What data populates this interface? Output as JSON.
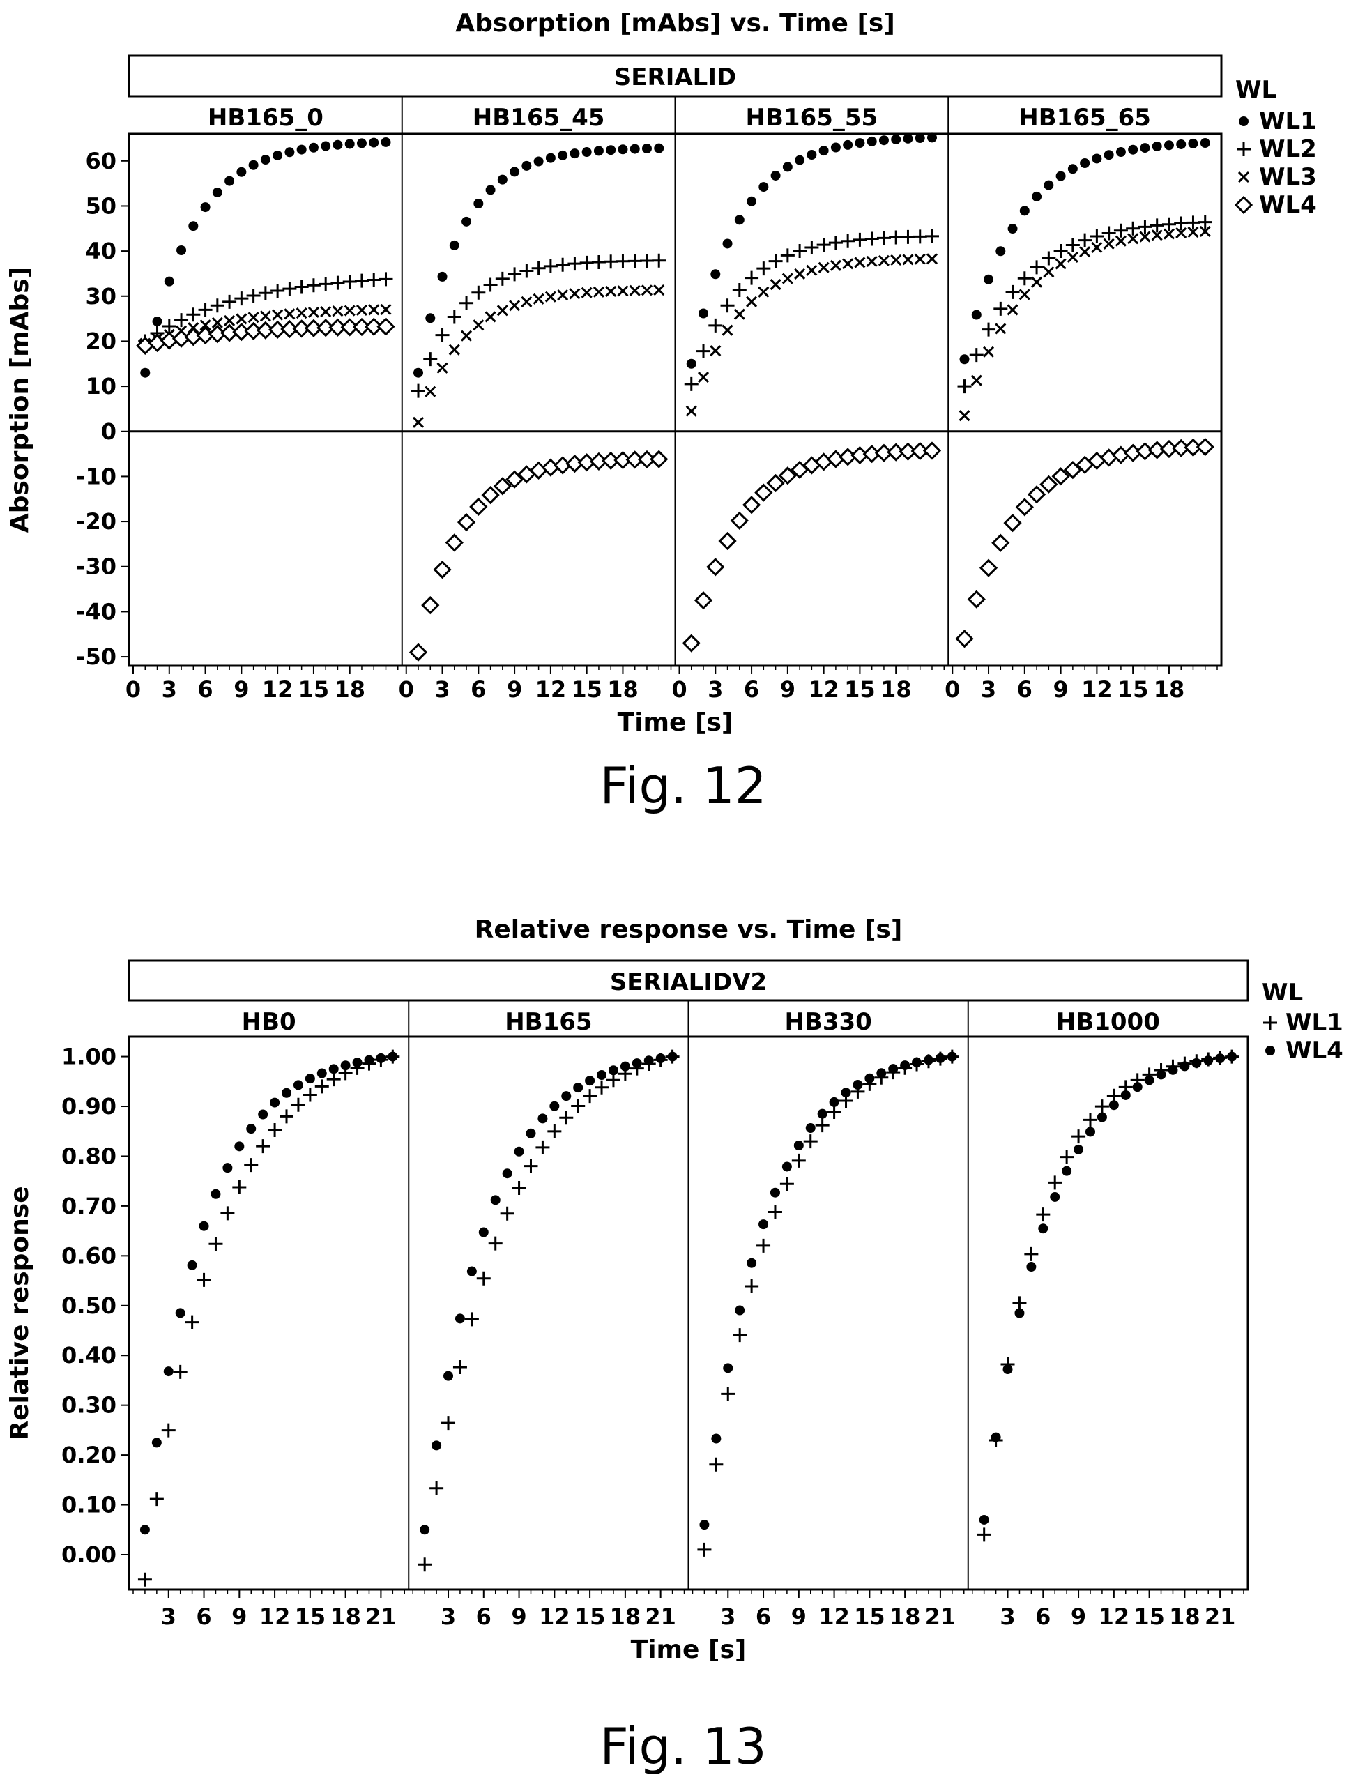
{
  "colors": {
    "ink": "#000000",
    "background": "#ffffff"
  },
  "chart_data": [
    {
      "type": "scatter",
      "title": "Absorption [mAbs] vs. Time [s]",
      "strip_title": "SERIALID",
      "xlabel": "Time [s]",
      "ylabel": "Absorption [mAbs]",
      "xlim": [
        0,
        22
      ],
      "ylim": [
        -52,
        66
      ],
      "x_ticks": [
        "0",
        "3",
        "6",
        "9",
        "12",
        "15",
        "18"
      ],
      "y_ticks": [
        "60",
        "50",
        "40",
        "30",
        "20",
        "10",
        "0",
        "-10",
        "-20",
        "-30",
        "-40",
        "-50"
      ],
      "zero_line": true,
      "grid": false,
      "legend_title": "WL",
      "legend_position": "right",
      "legend": [
        {
          "name": "WL1",
          "marker": "filled-circle"
        },
        {
          "name": "WL2",
          "marker": "plus"
        },
        {
          "name": "WL3",
          "marker": "cross"
        },
        {
          "name": "WL4",
          "marker": "open-diamond"
        }
      ],
      "panels": [
        {
          "label": "HB165_0",
          "series": [
            {
              "name": "WL1",
              "model": {
                "y0": 13.0,
                "yinf": 64.5,
                "tau": 4.0
              }
            },
            {
              "name": "WL2",
              "model": {
                "y0": 20.0,
                "yinf": 35.0,
                "tau": 8.0
              }
            },
            {
              "name": "WL3",
              "model": {
                "y0": 19.5,
                "yinf": 27.5,
                "tau": 7.0
              }
            },
            {
              "name": "WL4",
              "model": {
                "y0": 19.0,
                "yinf": 23.5,
                "tau": 7.0
              }
            }
          ]
        },
        {
          "label": "HB165_45",
          "series": [
            {
              "name": "WL1",
              "model": {
                "y0": 13.0,
                "yinf": 63.0,
                "tau": 3.6
              }
            },
            {
              "name": "WL2",
              "model": {
                "y0": 9.0,
                "yinf": 38.0,
                "tau": 3.6
              }
            },
            {
              "name": "WL3",
              "model": {
                "y0": 2.0,
                "yinf": 31.5,
                "tau": 3.8
              }
            },
            {
              "name": "WL4",
              "model": {
                "y0": -49.0,
                "yinf": -6.0,
                "tau": 3.6
              }
            }
          ]
        },
        {
          "label": "HB165_55",
          "series": [
            {
              "name": "WL1",
              "model": {
                "y0": 15.0,
                "yinf": 65.5,
                "tau": 4.0
              }
            },
            {
              "name": "WL2",
              "model": {
                "y0": 10.5,
                "yinf": 43.5,
                "tau": 4.0
              }
            },
            {
              "name": "WL3",
              "model": {
                "y0": 4.5,
                "yinf": 38.5,
                "tau": 4.0
              }
            },
            {
              "name": "WL4",
              "model": {
                "y0": -47.0,
                "yinf": -4.0,
                "tau": 4.0
              }
            }
          ]
        },
        {
          "label": "HB165_65",
          "series": [
            {
              "name": "WL1",
              "model": {
                "y0": 16.0,
                "yinf": 64.5,
                "tau": 4.4
              }
            },
            {
              "name": "WL2",
              "model": {
                "y0": 10.0,
                "yinf": 47.0,
                "tau": 4.8
              }
            },
            {
              "name": "WL3",
              "model": {
                "y0": 3.5,
                "yinf": 45.0,
                "tau": 4.8
              }
            },
            {
              "name": "WL4",
              "model": {
                "y0": -46.0,
                "yinf": -3.0,
                "tau": 4.4
              }
            }
          ]
        }
      ]
    },
    {
      "type": "scatter",
      "title": "Relative response vs. Time [s]",
      "strip_title": "SERIALIDV2",
      "xlabel": "Time [s]",
      "ylabel": "Relative response",
      "xlim": [
        0,
        23
      ],
      "ylim": [
        -0.07,
        1.04
      ],
      "x_ticks": [
        "3",
        "6",
        "9",
        "12",
        "15",
        "18",
        "21"
      ],
      "y_ticks": [
        "1.00",
        "0.90",
        "0.80",
        "0.70",
        "0.60",
        "0.50",
        "0.40",
        "0.30",
        "0.20",
        "0.10",
        "0.00"
      ],
      "grid": false,
      "legend_title": "WL",
      "legend_position": "right",
      "legend": [
        {
          "name": "WL1",
          "marker": "plus"
        },
        {
          "name": "WL4",
          "marker": "filled-circle"
        }
      ],
      "panels": [
        {
          "label": "HB0",
          "series": [
            {
              "name": "WL1",
              "model": {
                "y0": -0.05,
                "yinf": 1.1,
                "tau": 6.2,
                "t1": 22
              }
            },
            {
              "name": "WL4",
              "model": {
                "y0": 0.05,
                "yinf": 1.06,
                "tau": 5.0,
                "t1": 22
              }
            }
          ]
        },
        {
          "label": "HB165",
          "series": [
            {
              "name": "WL1",
              "model": {
                "y0": -0.02,
                "yinf": 1.1,
                "tau": 6.4,
                "t1": 22
              }
            },
            {
              "name": "WL4",
              "model": {
                "y0": 0.05,
                "yinf": 1.06,
                "tau": 5.2,
                "t1": 22
              }
            }
          ]
        },
        {
          "label": "HB330",
          "series": [
            {
              "name": "WL1",
              "model": {
                "y0": 0.01,
                "yinf": 1.07,
                "tau": 5.4,
                "t1": 22
              }
            },
            {
              "name": "WL4",
              "model": {
                "y0": 0.06,
                "yinf": 1.06,
                "tau": 5.0,
                "t1": 22
              }
            }
          ]
        },
        {
          "label": "HB1000",
          "series": [
            {
              "name": "WL1",
              "model": {
                "y0": 0.04,
                "yinf": 1.05,
                "tau": 4.6,
                "t1": 22
              }
            },
            {
              "name": "WL4",
              "model": {
                "y0": 0.07,
                "yinf": 1.07,
                "tau": 5.2,
                "t1": 22
              }
            }
          ]
        }
      ]
    }
  ],
  "captions": [
    "Fig. 12",
    "Fig. 13"
  ]
}
